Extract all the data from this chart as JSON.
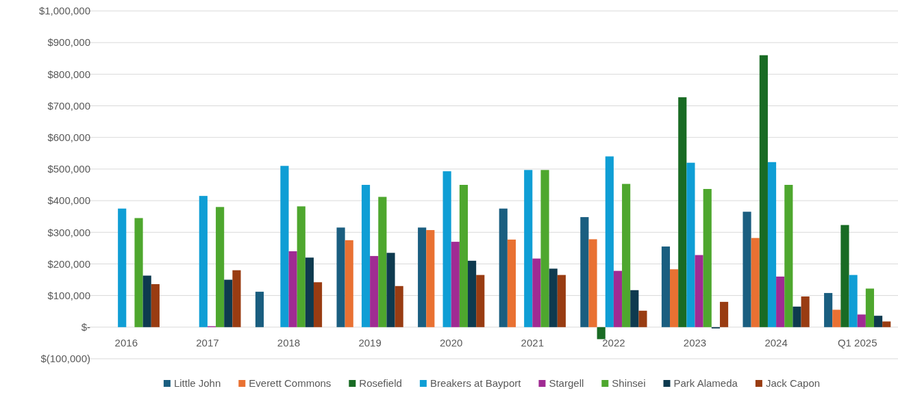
{
  "chart_data": {
    "type": "bar",
    "categories": [
      "2016",
      "2017",
      "2018",
      "2019",
      "2020",
      "2021",
      "2022",
      "2023",
      "2024",
      "Q1 2025"
    ],
    "series": [
      {
        "name": "Little John",
        "color": "#1a5e80",
        "values": [
          null,
          null,
          112000,
          315000,
          315000,
          375000,
          348000,
          255000,
          365000,
          108000
        ]
      },
      {
        "name": "Everett Commons",
        "color": "#e97132",
        "values": [
          null,
          null,
          null,
          275000,
          307000,
          277000,
          278000,
          183000,
          282000,
          55000
        ]
      },
      {
        "name": "Rosefield",
        "color": "#196b24",
        "values": [
          null,
          null,
          null,
          null,
          null,
          null,
          -38000,
          727000,
          860000,
          323000
        ]
      },
      {
        "name": "Breakers at Bayport",
        "color": "#0f9ed5",
        "values": [
          375000,
          415000,
          510000,
          450000,
          493000,
          497000,
          540000,
          520000,
          522000,
          165000
        ]
      },
      {
        "name": "Stargell",
        "color": "#a02b93",
        "values": [
          null,
          3000,
          240000,
          225000,
          270000,
          217000,
          178000,
          228000,
          160000,
          40000
        ]
      },
      {
        "name": "Shinsei",
        "color": "#4ea72e",
        "values": [
          345000,
          380000,
          382000,
          412000,
          450000,
          497000,
          453000,
          437000,
          450000,
          122000
        ]
      },
      {
        "name": "Park Alameda",
        "color": "#0e3a4f",
        "values": [
          163000,
          150000,
          220000,
          235000,
          210000,
          185000,
          117000,
          -4000,
          65000,
          36000
        ]
      },
      {
        "name": "Jack Capon",
        "color": "#993c12",
        "values": [
          136000,
          180000,
          142000,
          130000,
          165000,
          165000,
          52000,
          80000,
          97000,
          18000
        ]
      }
    ],
    "ylim": [
      -100000,
      1000000
    ],
    "yticks": [
      {
        "value": -100000,
        "label": "$(100,000)"
      },
      {
        "value": 0,
        "label": "$-"
      },
      {
        "value": 100000,
        "label": "$100,000"
      },
      {
        "value": 200000,
        "label": "$200,000"
      },
      {
        "value": 300000,
        "label": "$300,000"
      },
      {
        "value": 400000,
        "label": "$400,000"
      },
      {
        "value": 500000,
        "label": "$500,000"
      },
      {
        "value": 600000,
        "label": "$600,000"
      },
      {
        "value": 700000,
        "label": "$700,000"
      },
      {
        "value": 800000,
        "label": "$800,000"
      },
      {
        "value": 900000,
        "label": "$900,000"
      },
      {
        "value": 1000000,
        "label": "$1,000,000"
      }
    ],
    "grid": "y",
    "legend": "bottom"
  }
}
